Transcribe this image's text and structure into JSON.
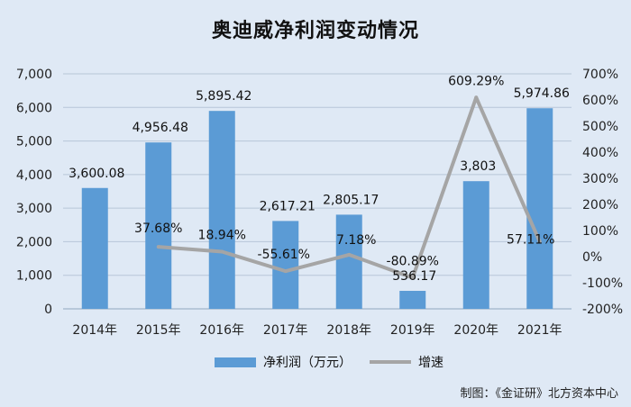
{
  "colors": {
    "bar": "#5b9bd5",
    "line": "#a5a5a5",
    "background": "#dfe9f5"
  },
  "chart_data": {
    "type": "bar",
    "title": "奥迪威净利润变动情况",
    "categories": [
      "2014年",
      "2015年",
      "2016年",
      "2017年",
      "2018年",
      "2019年",
      "2020年",
      "2021年"
    ],
    "series": [
      {
        "name": "净利润（万元）",
        "type": "bar",
        "axis": "left",
        "values": [
          3600.08,
          4956.48,
          5895.42,
          2617.21,
          2805.17,
          536.17,
          3803,
          5974.86
        ],
        "labels": [
          "3,600.08",
          "4,956.48",
          "5,895.42",
          "2,617.21",
          "2,805.17",
          "536.17",
          "3,803",
          "5,974.86"
        ]
      },
      {
        "name": "增速",
        "type": "line",
        "axis": "right",
        "values": [
          null,
          37.68,
          18.94,
          -55.61,
          7.18,
          -80.89,
          609.29,
          57.11
        ],
        "labels": [
          "",
          "37.68%",
          "18.94%",
          "-55.61%",
          "7.18%",
          "-80.89%",
          "609.29%",
          "57.11%"
        ]
      }
    ],
    "y_left": {
      "range": [
        0,
        7000
      ],
      "ticks": [
        "0",
        "1,000",
        "2,000",
        "3,000",
        "4,000",
        "5,000",
        "6,000",
        "7,000"
      ]
    },
    "y_right": {
      "range": [
        -200,
        700
      ],
      "ticks": [
        "-200%",
        "-100%",
        "0%",
        "100%",
        "200%",
        "300%",
        "400%",
        "500%",
        "600%",
        "700%"
      ]
    },
    "grid": true,
    "legend": "bottom"
  },
  "source": "制图：《金证研》北方资本中心"
}
